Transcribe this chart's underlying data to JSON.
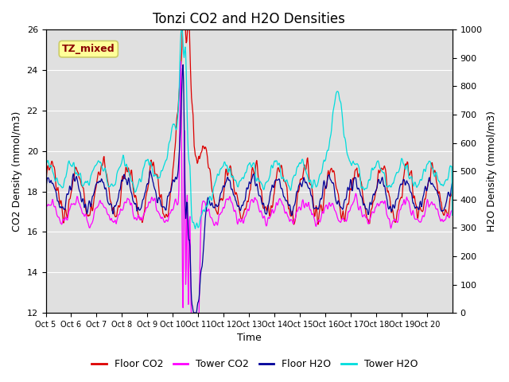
{
  "title": "Tonzi CO2 and H2O Densities",
  "xlabel": "Time",
  "ylabel_left": "CO2 Density (mmol/m3)",
  "ylabel_right": "H2O Density (mmol/m3)",
  "annotation": "TZ_mixed",
  "annotation_color": "#8B0000",
  "annotation_bg": "#FFFF99",
  "annotation_border": "#CCCC66",
  "ylim_left": [
    12,
    26
  ],
  "ylim_right": [
    0,
    1000
  ],
  "yticks_left": [
    12,
    14,
    16,
    18,
    20,
    22,
    24,
    26
  ],
  "yticks_right": [
    0,
    100,
    200,
    300,
    400,
    500,
    600,
    700,
    800,
    900,
    1000
  ],
  "xtick_labels": [
    "Oct 5",
    "Oct 6",
    "Oct 7",
    "Oct 8",
    "Oct 9",
    "Oct 10",
    "Oct 11",
    "Oct 12",
    "Oct 13",
    "Oct 14",
    "Oct 15",
    "Oct 16",
    "Oct 17",
    "Oct 18",
    "Oct 19",
    "Oct 20"
  ],
  "n_days": 16,
  "pts_per_day": 48,
  "floor_co2_color": "#DD0000",
  "tower_co2_color": "#FF00FF",
  "floor_h2o_color": "#000099",
  "tower_h2o_color": "#00DDDD",
  "legend_labels": [
    "Floor CO2",
    "Tower CO2",
    "Floor H2O",
    "Tower H2O"
  ],
  "bg_color": "#E0E0E0",
  "fig_bg": "#FFFFFF",
  "grid_color": "#FFFFFF",
  "linewidth": 0.9,
  "fontsize_title": 12,
  "fontsize_axis": 9,
  "fontsize_tick": 8,
  "fontsize_legend": 9,
  "figsize": [
    6.4,
    4.8
  ],
  "dpi": 100
}
